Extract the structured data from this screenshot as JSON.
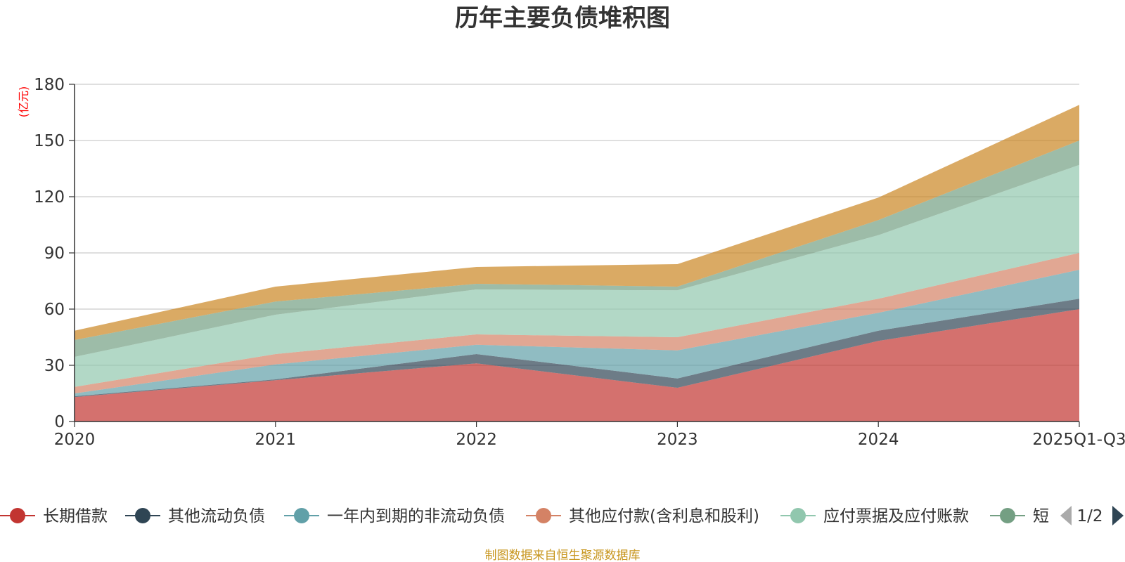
{
  "chart_data": {
    "type": "area",
    "stacked": true,
    "title": "历年主要负债堆积图",
    "ylabel": "(亿元)",
    "xlabel": "",
    "ylim": [
      0,
      180
    ],
    "yticks": [
      0,
      30,
      60,
      90,
      120,
      150,
      180
    ],
    "categories": [
      "2020",
      "2021",
      "2022",
      "2023",
      "2024",
      "2025Q1-Q3"
    ],
    "grid": true,
    "series": [
      {
        "name": "长期借款",
        "color": "#c23531",
        "values": [
          13,
          22,
          31,
          18,
          43,
          60
        ]
      },
      {
        "name": "其他流动负债",
        "color": "#2f4554",
        "values": [
          0.5,
          0.5,
          5,
          5,
          5.5,
          5.5
        ]
      },
      {
        "name": "一年内到期的非流动负债",
        "color": "#61a0a8",
        "values": [
          1.5,
          8,
          5,
          15,
          9.5,
          15.5
        ]
      },
      {
        "name": "其他应付款(含利息和股利)",
        "color": "#d48265",
        "values": [
          3.5,
          5.5,
          5.5,
          7,
          7.5,
          9
        ]
      },
      {
        "name": "应付票据及应付账款",
        "color": "#91c7ae",
        "values": [
          16,
          21,
          24,
          25,
          34,
          47
        ]
      },
      {
        "name": "短期借款",
        "color": "#749f83",
        "values": [
          9,
          7,
          3,
          2,
          8,
          13
        ]
      },
      {
        "name": "",
        "color": "#ca8622",
        "values": [
          5,
          8,
          9,
          12,
          12,
          19
        ]
      }
    ]
  },
  "legend": {
    "items": [
      {
        "label": "长期借款",
        "color": "#c23531"
      },
      {
        "label": "其他流动负债",
        "color": "#2f4554"
      },
      {
        "label": "一年内到期的非流动负债",
        "color": "#61a0a8"
      },
      {
        "label": "其他应付款(含利息和股利)",
        "color": "#d48265"
      },
      {
        "label": "应付票据及应付账款",
        "color": "#91c7ae"
      },
      {
        "label": "短",
        "color": "#749f83"
      }
    ],
    "page": "1/2"
  },
  "source": "制图数据来自恒生聚源数据库"
}
